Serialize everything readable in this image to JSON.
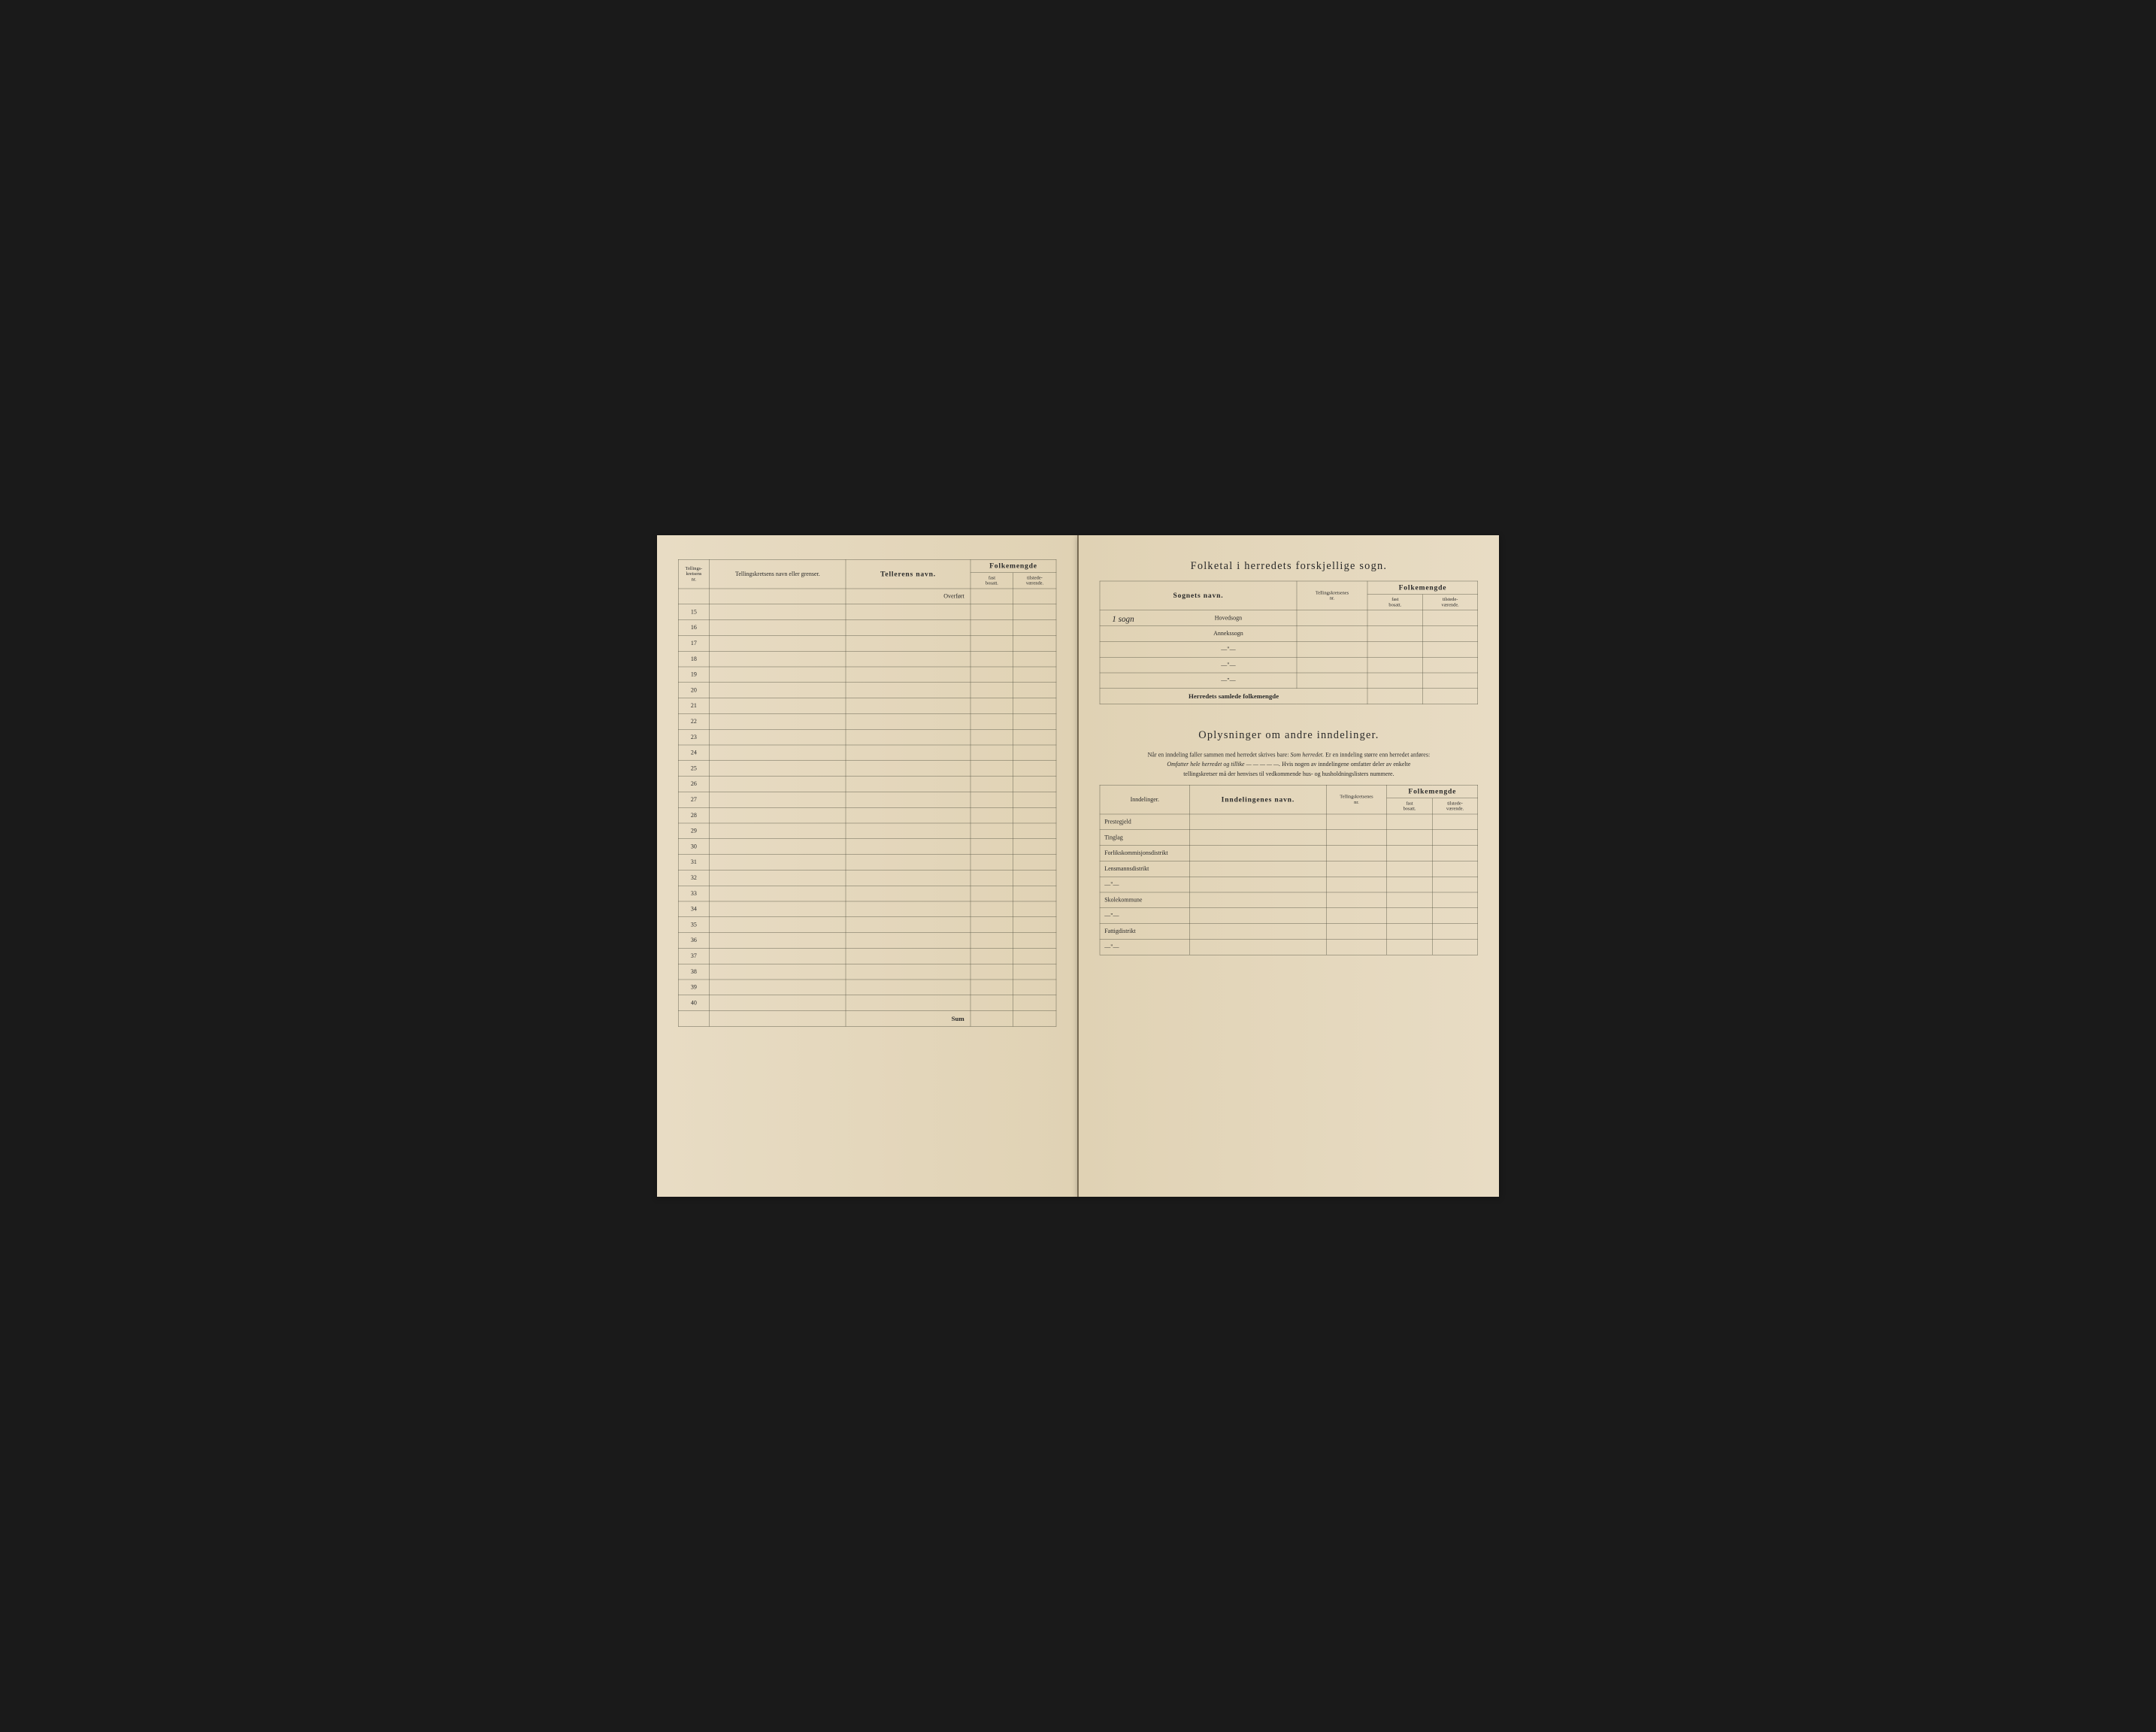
{
  "left_page": {
    "headers": {
      "col1_line1": "Tellings-",
      "col1_line2": "kretsens",
      "col1_line3": "nr.",
      "col2": "Tellingskretsens navn eller grenser.",
      "col3": "Tellerens navn.",
      "folkemengde": "Folkemengde",
      "fast_line1": "fast",
      "fast_line2": "bosatt.",
      "tilstede_line1": "tilstede-",
      "tilstede_line2": "værende."
    },
    "overfort": "Overført",
    "row_numbers": [
      "15",
      "16",
      "17",
      "18",
      "19",
      "20",
      "21",
      "22",
      "23",
      "24",
      "25",
      "26",
      "27",
      "28",
      "29",
      "30",
      "31",
      "32",
      "33",
      "34",
      "35",
      "36",
      "37",
      "38",
      "39",
      "40"
    ],
    "sum": "Sum"
  },
  "right_page": {
    "title1": "Folketal i herredets forskjellige sogn.",
    "table1": {
      "headers": {
        "sognets_navn": "Sognets navn.",
        "tellingskretsenes_line1": "Tellingskretsenes",
        "tellingskretsenes_line2": "nr.",
        "folkemengde": "Folkemengde",
        "fast_line1": "fast",
        "fast_line2": "bosatt.",
        "tilstede_line1": "tilstede-",
        "tilstede_line2": "værende."
      },
      "handwritten": "1 sogn",
      "rows": [
        "Hovedsogn",
        "Annekssogn",
        "—\"—",
        "—\"—",
        "—\"—"
      ],
      "total": "Herredets samlede folkemengde"
    },
    "title2": "Oplysninger om andre inndelinger.",
    "subtitle_parts": {
      "p1": "Når en inndeling faller sammen med herredet skrives bare: ",
      "p2": "Som herredet.",
      "p3": " Er en inndeling større enn herredet anføres:",
      "p4": "Omfatter hele herredet og tillike — — — — —.",
      "p5": " Hvis nogen av inndelingene omfatter deler av enkelte",
      "p6": "tellingskretser må der henvises til vedkommende hus- og husholdningslisters nummere."
    },
    "table2": {
      "headers": {
        "inndelinger": "Inndelinger.",
        "inndelingenes_navn": "Inndelingenes navn.",
        "tellingskretsenes_line1": "Tellingskretsenes",
        "tellingskretsenes_line2": "nr.",
        "folkemengde": "Folkemengde",
        "fast_line1": "fast",
        "fast_line2": "bosatt.",
        "tilstede_line1": "tilstede-",
        "tilstede_line2": "værende."
      },
      "rows": [
        "Prestegjeld",
        "Tinglag",
        "Forlikskommisjonsdistrikt",
        "Lensmannsdistrikt",
        "—\"—",
        "Skolekommune",
        "—\"—",
        "Fattigdistrikt",
        "—\"—"
      ]
    }
  }
}
